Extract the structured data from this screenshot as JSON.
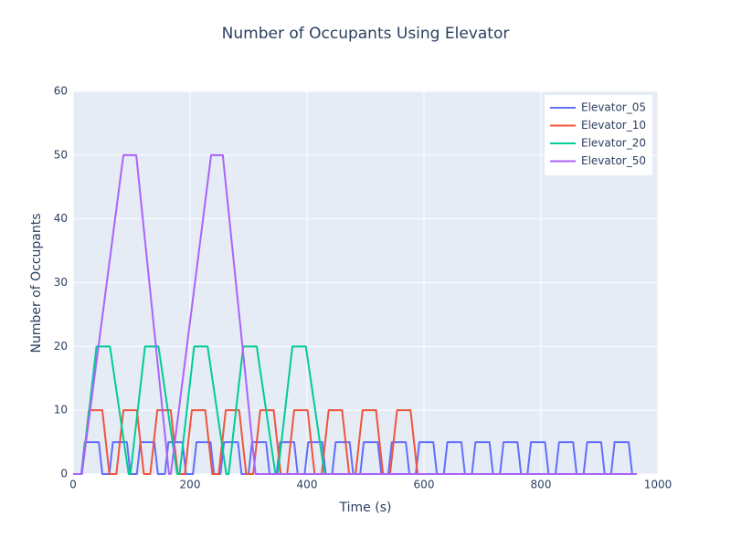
{
  "chart_data": {
    "type": "line",
    "title": "Number of Occupants Using Elevator",
    "x_label": "Time (s)",
    "y_label": "Number of Occupants",
    "xlim": [
      0,
      1000
    ],
    "xticks": [
      0,
      200,
      400,
      600,
      800,
      1000
    ],
    "ylim": [
      0,
      60
    ],
    "yticks": [
      0,
      10,
      20,
      30,
      40,
      50,
      60
    ],
    "grid": true,
    "legend": "top-right",
    "series": [
      {
        "name": "Elevator_05",
        "color": "#636efa",
        "x": [
          0,
          14,
          20,
          44,
          50,
          62,
          68,
          92,
          98,
          109,
          115,
          139,
          145,
          157,
          163,
          187,
          193,
          205,
          211,
          235,
          241,
          252,
          258,
          282,
          288,
          300,
          306,
          330,
          336,
          348,
          354,
          378,
          384,
          396,
          402,
          426,
          432,
          443,
          449,
          473,
          479,
          491,
          497,
          521,
          527,
          539,
          545,
          569,
          575,
          586,
          592,
          616,
          622,
          634,
          640,
          664,
          670,
          682,
          688,
          712,
          718,
          730,
          736,
          760,
          766,
          777,
          783,
          807,
          813,
          825,
          831,
          855,
          861,
          873,
          879,
          903,
          909,
          920,
          926,
          950,
          956,
          964
        ],
        "values": [
          0,
          0,
          5,
          5,
          0,
          0,
          5,
          5,
          0,
          0,
          5,
          5,
          0,
          0,
          5,
          5,
          0,
          0,
          5,
          5,
          0,
          0,
          5,
          5,
          0,
          0,
          5,
          5,
          0,
          0,
          5,
          5,
          0,
          0,
          5,
          5,
          0,
          0,
          5,
          5,
          0,
          0,
          5,
          5,
          0,
          0,
          5,
          5,
          0,
          0,
          5,
          5,
          0,
          0,
          5,
          5,
          0,
          0,
          5,
          5,
          0,
          0,
          5,
          5,
          0,
          0,
          5,
          5,
          0,
          0,
          5,
          5,
          0,
          0,
          5,
          5,
          0,
          0,
          5,
          5,
          0,
          0
        ]
      },
      {
        "name": "Elevator_10",
        "color": "#ef553b",
        "x": [
          0,
          15,
          27,
          50,
          62,
          74,
          86,
          109,
          121,
          132,
          144,
          167,
          179,
          191,
          203,
          226,
          238,
          249,
          261,
          284,
          296,
          308,
          320,
          343,
          355,
          366,
          378,
          401,
          413,
          425,
          437,
          460,
          472,
          483,
          495,
          518,
          530,
          542,
          554,
          577,
          589,
          964
        ],
        "values": [
          0,
          0,
          10,
          10,
          0,
          0,
          10,
          10,
          0,
          0,
          10,
          10,
          0,
          0,
          10,
          10,
          0,
          0,
          10,
          10,
          0,
          0,
          10,
          10,
          0,
          0,
          10,
          10,
          0,
          0,
          10,
          10,
          0,
          0,
          10,
          10,
          0,
          0,
          10,
          10,
          0,
          0
        ]
      },
      {
        "name": "Elevator_20",
        "color": "#00cc96",
        "x": [
          0,
          15,
          40,
          63,
          95,
          98,
          123,
          146,
          178,
          182,
          207,
          230,
          262,
          266,
          291,
          314,
          346,
          350,
          375,
          398,
          430,
          964
        ],
        "values": [
          0,
          0,
          20,
          20,
          0,
          0,
          20,
          20,
          0,
          0,
          20,
          20,
          0,
          0,
          20,
          20,
          0,
          0,
          20,
          20,
          0,
          0
        ]
      },
      {
        "name": "Elevator_50",
        "color": "#ab63fa",
        "x": [
          0,
          15,
          86,
          108,
          164,
          167,
          236,
          256,
          312,
          964
        ],
        "values": [
          0,
          0,
          50,
          50,
          0,
          0,
          50,
          50,
          0,
          0
        ]
      }
    ]
  }
}
